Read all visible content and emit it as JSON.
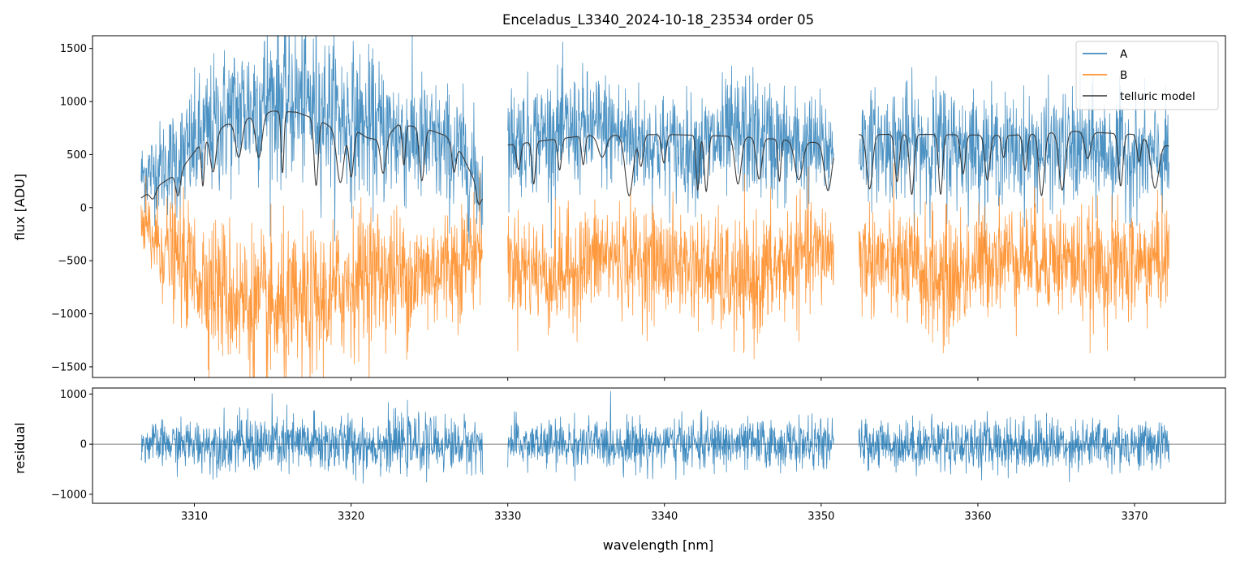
{
  "chart_data": [
    {
      "type": "line",
      "panel": "flux",
      "title": "Enceladus_L3340_2024-10-18_23534  order 05",
      "xlabel": "",
      "ylabel": "flux [ADU]",
      "xlim": [
        3303.5,
        3375.8
      ],
      "ylim": [
        -1600,
        1620
      ],
      "yticks": [
        -1500,
        -1000,
        -500,
        0,
        500,
        1000,
        1500
      ],
      "ytick_labels": [
        "−1500",
        "−1000",
        "−500",
        "0",
        "500",
        "1000",
        "1500"
      ],
      "xticks": [
        3310,
        3320,
        3330,
        3340,
        3350,
        3360,
        3370
      ],
      "legend": {
        "placement": "top-right"
      },
      "segments": [
        [
          3306.6,
          3328.4
        ],
        [
          3330.0,
          3350.8
        ],
        [
          3352.4,
          3372.2
        ]
      ],
      "series": [
        {
          "name": "A",
          "color": "#1f77b4",
          "width": 0.8,
          "opacity": 0.8,
          "x": [
            3306.6,
            3309,
            3312,
            3315,
            3318,
            3321,
            3324,
            3327,
            3328.4,
            3330.0,
            3333,
            3336,
            3339,
            3342,
            3345,
            3348,
            3350.8,
            3352.4,
            3355,
            3358,
            3361,
            3364,
            3367,
            3370,
            3372.2
          ],
          "y": [
            300,
            450,
            850,
            1050,
            950,
            750,
            650,
            500,
            200,
            650,
            700,
            750,
            600,
            550,
            700,
            580,
            550,
            600,
            600,
            600,
            550,
            550,
            550,
            500,
            450
          ],
          "noise": [
            180,
            300,
            380,
            420,
            400,
            380,
            350,
            320,
            300,
            270,
            300,
            300,
            280,
            270,
            330,
            300,
            260,
            260,
            300,
            320,
            270,
            280,
            300,
            290,
            260
          ]
        },
        {
          "name": "B",
          "color": "#ff7f0e",
          "width": 0.8,
          "opacity": 0.8,
          "x": [
            3306.6,
            3309,
            3312,
            3315,
            3318,
            3321,
            3324,
            3327,
            3328.4,
            3330.0,
            3333,
            3336,
            3339,
            3342,
            3345,
            3348,
            3350.8,
            3352.4,
            3355,
            3358,
            3361,
            3364,
            3367,
            3370,
            3372.2
          ],
          "y": [
            -200,
            -500,
            -800,
            -1000,
            -900,
            -600,
            -650,
            -500,
            -350,
            -500,
            -650,
            -450,
            -500,
            -550,
            -750,
            -500,
            -400,
            -450,
            -550,
            -700,
            -450,
            -450,
            -550,
            -550,
            -450
          ],
          "noise": [
            220,
            300,
            380,
            400,
            380,
            360,
            330,
            300,
            280,
            260,
            300,
            280,
            280,
            270,
            330,
            300,
            260,
            270,
            300,
            340,
            270,
            280,
            300,
            300,
            270
          ]
        },
        {
          "name": "telluric model",
          "color": "#333333",
          "width": 1.1,
          "opacity": 0.95,
          "x": [
            3306.6,
            3307.6,
            3309,
            3310.5,
            3312,
            3313.5,
            3315,
            3316.5,
            3318,
            3319,
            3320,
            3321,
            3322,
            3323,
            3324.5,
            3326,
            3327,
            3328.4,
            3330.0,
            3335,
            3340,
            3345,
            3350.8,
            3352.4,
            3357,
            3362,
            3366,
            3370,
            3372.2
          ],
          "y": [
            90,
            200,
            330,
            620,
            780,
            850,
            910,
            900,
            820,
            740,
            760,
            660,
            630,
            780,
            760,
            680,
            520,
            100,
            590,
            680,
            690,
            670,
            600,
            690,
            690,
            680,
            720,
            690,
            580
          ]
        }
      ]
    },
    {
      "type": "line",
      "panel": "residual",
      "xlabel": "wavelength [nm]",
      "ylabel": "residual",
      "xlim": [
        3303.5,
        3375.8
      ],
      "ylim": [
        -1180,
        1120
      ],
      "yticks": [
        -1000,
        0,
        1000
      ],
      "ytick_labels": [
        "−1000",
        "0",
        "1000"
      ],
      "xticks": [
        3310,
        3320,
        3330,
        3340,
        3350,
        3360,
        3370
      ],
      "xtick_labels": [
        "3310",
        "3320",
        "3330",
        "3340",
        "3350",
        "3360",
        "3370"
      ],
      "zero_line": 0,
      "segments": [
        [
          3306.6,
          3328.4
        ],
        [
          3330.0,
          3350.8
        ],
        [
          3352.4,
          3372.2
        ]
      ],
      "series": [
        {
          "name": "residual",
          "color": "#1f77b4",
          "width": 0.8,
          "opacity": 0.85,
          "x": [
            3306.6,
            3315,
            3325,
            3328.4,
            3330.0,
            3340,
            3350.8,
            3352.4,
            3362,
            3372.2
          ],
          "y": [
            0,
            0,
            0,
            0,
            0,
            0,
            0,
            0,
            0,
            0
          ],
          "noise": [
            220,
            340,
            300,
            280,
            260,
            280,
            260,
            260,
            300,
            260
          ]
        }
      ]
    }
  ]
}
